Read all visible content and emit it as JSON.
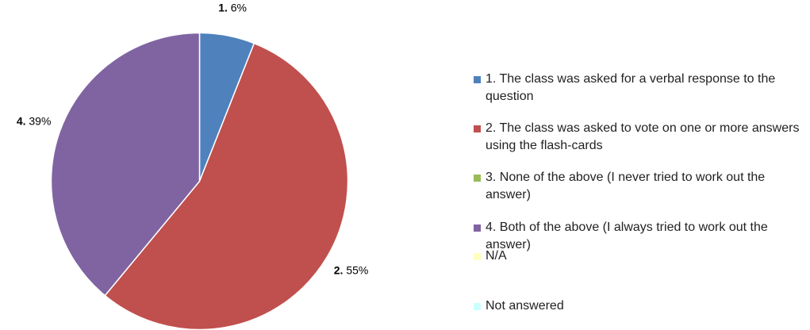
{
  "chart_data": {
    "type": "pie",
    "categories": [
      "1. The class was asked for a verbal response to the question",
      "2. The class was asked to vote on one or more answers using the flash-cards",
      "3. None of the above (I never tried to work out the answer)",
      "4. Both of the above (I always tried to work out the answer)",
      "N/A",
      "Not answered"
    ],
    "values": [
      6,
      55,
      0,
      39,
      0,
      0
    ],
    "slice_labels": [
      "1.",
      "2.",
      null,
      "4.",
      null,
      null
    ],
    "value_labels": [
      "6%",
      "55%",
      null,
      "39%",
      null,
      null
    ],
    "colors": [
      "#4f81bd",
      "#c0504d",
      "#9bbb59",
      "#8064a2",
      "#ffffc0",
      "#ccffff"
    ],
    "legend": "right"
  }
}
